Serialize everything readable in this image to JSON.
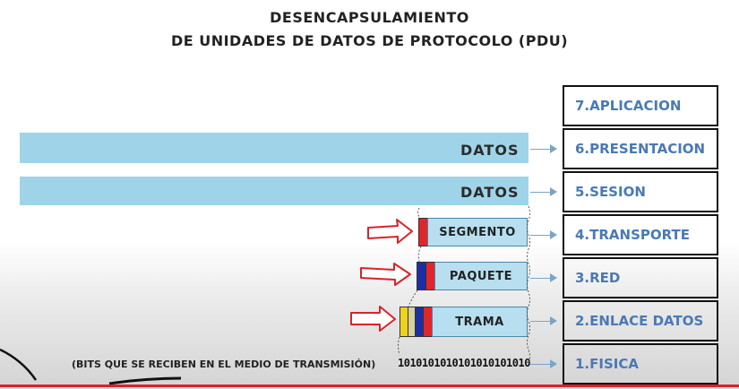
{
  "title": {
    "line1": "DESENCAPSULAMIENTO",
    "line2": "DE UNIDADES DE DATOS DE PROTOCOLO (PDU)"
  },
  "layers": [
    {
      "label": "7.APLICACION"
    },
    {
      "label": "6.PRESENTACION"
    },
    {
      "label": "5.SESION"
    },
    {
      "label": "4.TRANSPORTE"
    },
    {
      "label": "3.RED"
    },
    {
      "label": "2.ENLACE DATOS"
    },
    {
      "label": "1.FISICA"
    }
  ],
  "pdus": {
    "presentation": "DATOS",
    "session": "DATOS",
    "segment": "SEGMENTO",
    "packet": "PAQUETE",
    "frame": "TRAMA"
  },
  "bits": {
    "note": "(BITS QUE SE RECIBEN EN EL MEDIO DE TRANSMISIÓN)",
    "stream": "1010101010101010101010"
  },
  "colors": {
    "bar": "#9fd4e8",
    "layer_text": "#4a79b5",
    "header_red": "#e0262b",
    "header_blue": "#1c2ea6",
    "header_yellow": "#f0d21c",
    "arrow_red": "#d8232a"
  }
}
